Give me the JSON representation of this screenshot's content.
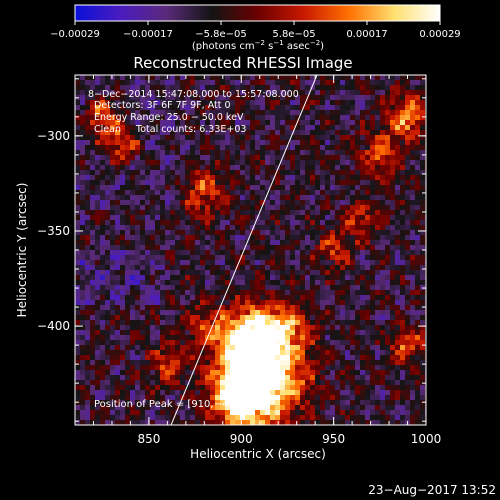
{
  "chart_data": {
    "type": "heatmap",
    "title": "Reconstructed RHESSI Image",
    "xlabel": "Heliocentric X (arcsec)",
    "ylabel": "Heliocentric Y (arcsec)",
    "xlim": [
      810,
      1000
    ],
    "ylim": [
      -452,
      -268
    ],
    "x_ticks": [
      850,
      900,
      950,
      1000
    ],
    "x_tick_labels": [
      "850",
      "900",
      "950",
      "1000"
    ],
    "y_ticks": [
      -300,
      -350,
      -400
    ],
    "y_tick_labels": [
      "−300",
      "−350",
      "−400"
    ],
    "colorbar": {
      "min": -0.00029,
      "max": 0.00029,
      "tick_labels": [
        "−0.00029",
        "−0.00017",
        "−5.8e−05",
        "5.8e−05",
        "0.00017",
        "0.00029"
      ],
      "unit_parts": [
        "(photons cm",
        "−2",
        " s",
        "−1",
        " asec",
        "−2",
        ")"
      ],
      "colors": [
        "#0a10d8",
        "#4a1cc0",
        "#5a2a7a",
        "#141414",
        "#6a0000",
        "#c81800",
        "#ff7000",
        "#ffe070",
        "#ffffff"
      ]
    },
    "annotations": [
      "8−Dec−2014 15:47:08.000 to 15:57:08.000",
      "Detectors: 3F 6F 7F 9F, Att 0",
      "Energy Range: 25.0 − 50.0 keV",
      "Clean     Total counts: 6.33E+03"
    ],
    "peak_label": "Position of Peak = [910,−426]",
    "peak": [
      910,
      -426
    ],
    "limb_line": [
      [
        862,
        -452
      ],
      [
        941,
        -268
      ]
    ],
    "peak_value": 0.00029
  },
  "footer": {
    "timestamp": "23−Aug−2017 13:52"
  }
}
